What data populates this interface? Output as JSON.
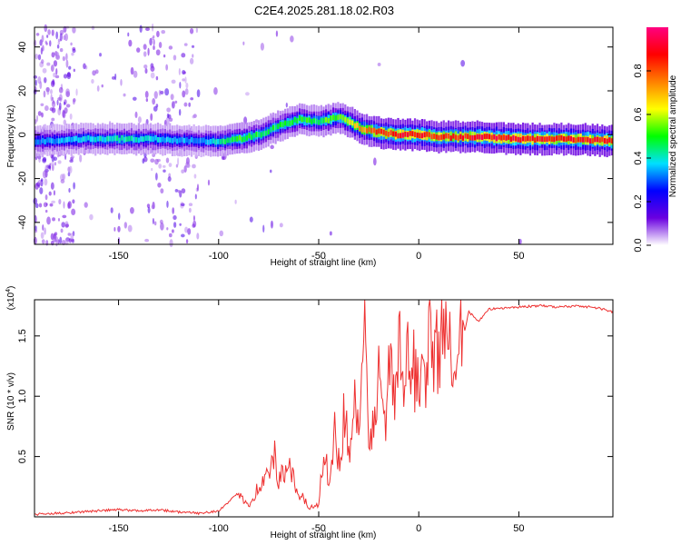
{
  "figure_title": "C2E4.2025.281.18.02.R03",
  "chart_data": [
    {
      "type": "heatmap",
      "title": "C2E4.2025.281.18.02.R03",
      "xlabel": "Height of straight line (km)",
      "ylabel": "Frequency (Hz)",
      "xlim": [
        -192,
        97
      ],
      "ylim": [
        -50,
        49
      ],
      "xticks": [
        -150,
        -100,
        -50,
        0,
        50
      ],
      "xtick_labels": [
        "-150",
        "-100",
        "-50",
        "0",
        "50"
      ],
      "yticks": [
        40,
        20,
        0,
        -20,
        -40
      ],
      "ytick_labels": [
        "40",
        "20",
        "0",
        "-20",
        "-40"
      ],
      "colorbar": {
        "label": "Normalized spectral amplitude",
        "range": [
          0,
          1
        ],
        "ticks": [
          0.0,
          0.2,
          0.4,
          0.6,
          0.8
        ],
        "tick_labels": [
          "0.0",
          "0.2",
          "0.4",
          "0.6",
          "0.8"
        ],
        "colormap": [
          "#ffffff",
          "#6a00e0",
          "#0000ff",
          "#00e0ff",
          "#00ff00",
          "#ffff00",
          "#ff8000",
          "#ff0000",
          "#ff0080"
        ]
      },
      "ridge": {
        "x": [
          -192,
          -170,
          -150,
          -130,
          -110,
          -100,
          -90,
          -80,
          -70,
          -60,
          -50,
          -45,
          -40,
          -35,
          -30,
          -25,
          -20,
          -10,
          0,
          10,
          20,
          30,
          50,
          80,
          97
        ],
        "freq": [
          -3,
          -2,
          -2,
          -2,
          -3,
          -3,
          -2,
          0,
          4,
          7,
          6,
          7,
          8,
          6,
          3,
          2,
          1,
          0,
          0,
          -1,
          -1,
          -1,
          -2,
          -2,
          -3
        ],
        "amplitude": [
          0.35,
          0.4,
          0.45,
          0.4,
          0.35,
          0.45,
          0.55,
          0.5,
          0.5,
          0.55,
          0.5,
          0.6,
          0.55,
          0.7,
          0.75,
          0.8,
          0.9,
          0.95,
          0.95,
          0.9,
          0.9,
          0.95,
          0.95,
          0.92,
          0.95
        ]
      }
    },
    {
      "type": "line",
      "title": "",
      "xlabel": "Height of straight line (km)",
      "ylabel": "SNR (10 * v/v)",
      "yscale_label": "(x10",
      "yscale_exp": "4",
      "yscale_close": ")",
      "xlim": [
        -192,
        97
      ],
      "ylim": [
        0,
        1.8
      ],
      "xticks": [
        -150,
        -100,
        -50,
        0,
        50
      ],
      "xtick_labels": [
        "-150",
        "-100",
        "-50",
        "0",
        "50"
      ],
      "yticks": [
        0.5,
        1.0,
        1.5
      ],
      "ytick_labels": [
        "0.5",
        "1.0",
        "1.5"
      ],
      "color": "#ee3030",
      "series": [
        {
          "name": "SNR",
          "x": [
            -192,
            -180,
            -170,
            -160,
            -150,
            -140,
            -130,
            -120,
            -110,
            -100,
            -95,
            -90,
            -85,
            -80,
            -75,
            -72,
            -70,
            -65,
            -60,
            -55,
            -50,
            -47,
            -45,
            -42,
            -40,
            -37,
            -35,
            -32,
            -30,
            -27,
            -25,
            -22,
            -20,
            -17,
            -15,
            -12,
            -10,
            -7,
            -5,
            -2,
            0,
            3,
            5,
            8,
            10,
            13,
            15,
            18,
            20,
            23,
            25,
            30,
            35,
            40,
            50,
            60,
            70,
            80,
            90,
            97
          ],
          "y": [
            0.02,
            0.03,
            0.04,
            0.05,
            0.06,
            0.05,
            0.06,
            0.04,
            0.03,
            0.05,
            0.12,
            0.2,
            0.1,
            0.25,
            0.35,
            0.5,
            0.3,
            0.4,
            0.2,
            0.08,
            0.1,
            0.6,
            0.3,
            0.7,
            0.45,
            0.9,
            0.5,
            1.05,
            0.6,
            1.55,
            0.5,
            0.95,
            1.15,
            0.75,
            1.3,
            0.9,
            1.4,
            1.05,
            1.35,
            1.2,
            1.25,
            1.15,
            1.45,
            1.3,
            1.5,
            1.35,
            1.6,
            1.4,
            1.8,
            1.55,
            1.7,
            1.62,
            1.72,
            1.73,
            1.74,
            1.75,
            1.74,
            1.75,
            1.73,
            1.7
          ]
        }
      ]
    }
  ]
}
